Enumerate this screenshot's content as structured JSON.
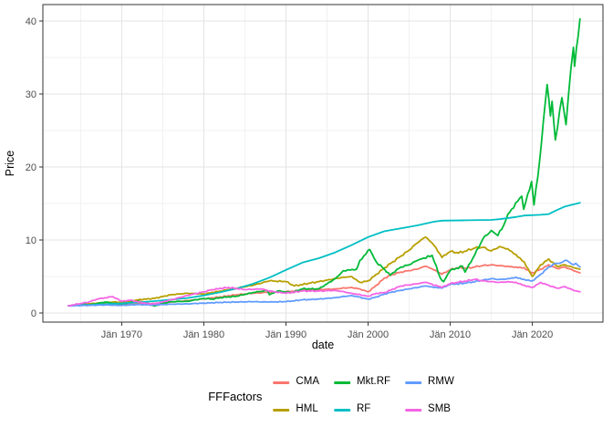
{
  "chart_data": {
    "type": "line",
    "title": "",
    "xlabel": "date",
    "ylabel": "Price",
    "legend_title": "FFFactors",
    "legend_position": "bottom",
    "grid": true,
    "xlim": [
      1960.4,
      2028.6
    ],
    "ylim": [
      -1.25,
      42.25
    ],
    "x_ticks": [
      {
        "label": "Jän 1970",
        "year": 1970
      },
      {
        "label": "Jän 1980",
        "year": 1980
      },
      {
        "label": "Jän 1990",
        "year": 1990
      },
      {
        "label": "Jän 2000",
        "year": 2000
      },
      {
        "label": "Jän 2010",
        "year": 2010
      },
      {
        "label": "Jän 2020",
        "year": 2020
      }
    ],
    "x_minor_ticks": [
      1965,
      1975,
      1985,
      1995,
      2005,
      2015,
      2025
    ],
    "y_ticks": [
      {
        "label": "0",
        "value": 0
      },
      {
        "label": "10",
        "value": 10
      },
      {
        "label": "20",
        "value": 20
      },
      {
        "label": "30",
        "value": 30
      },
      {
        "label": "40",
        "value": 40
      }
    ],
    "y_minor_ticks": [
      5,
      15,
      25,
      35
    ],
    "colors": {
      "panel_border": "#333333",
      "grid_major": "#e3e3e3",
      "grid_minor": "#f1f1f1",
      "tick_label": "#4d4d4d"
    },
    "series": [
      {
        "name": "CMA",
        "color": "#F8766D",
        "points": [
          [
            1963.5,
            1.0
          ],
          [
            1965,
            1.05
          ],
          [
            1966,
            1.1
          ],
          [
            1968,
            1.15
          ],
          [
            1970,
            1.1
          ],
          [
            1972,
            1.25
          ],
          [
            1974,
            1.3
          ],
          [
            1976,
            1.5
          ],
          [
            1978,
            1.7
          ],
          [
            1980,
            1.95
          ],
          [
            1982,
            2.2
          ],
          [
            1984,
            2.5
          ],
          [
            1986,
            2.7
          ],
          [
            1988,
            2.85
          ],
          [
            1990,
            2.9
          ],
          [
            1992,
            3.1
          ],
          [
            1994,
            3.2
          ],
          [
            1996,
            3.3
          ],
          [
            1998,
            3.5
          ],
          [
            1999,
            3.3
          ],
          [
            2000,
            2.9
          ],
          [
            2001,
            3.8
          ],
          [
            2002,
            4.8
          ],
          [
            2003,
            5.3
          ],
          [
            2004,
            5.6
          ],
          [
            2005,
            5.8
          ],
          [
            2006,
            6.0
          ],
          [
            2007,
            6.4
          ],
          [
            2008,
            5.9
          ],
          [
            2009,
            5.3
          ],
          [
            2010,
            5.9
          ],
          [
            2011,
            6.2
          ],
          [
            2012,
            6.1
          ],
          [
            2013,
            6.3
          ],
          [
            2014,
            6.5
          ],
          [
            2015,
            6.6
          ],
          [
            2016,
            6.5
          ],
          [
            2017,
            6.4
          ],
          [
            2018,
            6.3
          ],
          [
            2019,
            6.2
          ],
          [
            2020,
            5.5
          ],
          [
            2021,
            6.0
          ],
          [
            2022,
            6.6
          ],
          [
            2023,
            6.1
          ],
          [
            2024,
            6.3
          ],
          [
            2025,
            5.8
          ],
          [
            2025.8,
            5.5
          ]
        ]
      },
      {
        "name": "HML",
        "color": "#B79F00",
        "points": [
          [
            1963.5,
            1.0
          ],
          [
            1965,
            1.15
          ],
          [
            1967,
            1.35
          ],
          [
            1969,
            1.5
          ],
          [
            1970,
            1.45
          ],
          [
            1972,
            1.8
          ],
          [
            1974,
            2.0
          ],
          [
            1976,
            2.5
          ],
          [
            1978,
            2.7
          ],
          [
            1980,
            2.6
          ],
          [
            1982,
            3.0
          ],
          [
            1984,
            3.4
          ],
          [
            1986,
            3.8
          ],
          [
            1988,
            4.4
          ],
          [
            1990,
            4.3
          ],
          [
            1991,
            3.7
          ],
          [
            1993,
            4.1
          ],
          [
            1995,
            4.5
          ],
          [
            1997,
            4.9
          ],
          [
            1998,
            5.0
          ],
          [
            1999,
            4.2
          ],
          [
            2000,
            4.4
          ],
          [
            2001,
            5.3
          ],
          [
            2002,
            6.2
          ],
          [
            2003,
            7.0
          ],
          [
            2004,
            7.8
          ],
          [
            2005,
            8.6
          ],
          [
            2006,
            9.6
          ],
          [
            2007,
            10.4
          ],
          [
            2008,
            9.3
          ],
          [
            2009,
            7.6
          ],
          [
            2010,
            8.4
          ],
          [
            2011,
            8.2
          ],
          [
            2012,
            8.5
          ],
          [
            2013,
            8.9
          ],
          [
            2014,
            9.0
          ],
          [
            2015,
            8.5
          ],
          [
            2016,
            9.1
          ],
          [
            2017,
            8.8
          ],
          [
            2018,
            8.0
          ],
          [
            2019,
            7.0
          ],
          [
            2020,
            5.0
          ],
          [
            2021,
            6.6
          ],
          [
            2022,
            7.4
          ],
          [
            2023,
            6.4
          ],
          [
            2024,
            6.6
          ],
          [
            2025,
            6.2
          ],
          [
            2025.8,
            6.0
          ]
        ]
      },
      {
        "name": "Mkt.RF",
        "color": "#00BA38",
        "points": [
          [
            1963.5,
            1.0
          ],
          [
            1965,
            1.2
          ],
          [
            1966,
            1.1
          ],
          [
            1968,
            1.5
          ],
          [
            1969,
            1.3
          ],
          [
            1970,
            1.25
          ],
          [
            1972,
            1.6
          ],
          [
            1973,
            1.35
          ],
          [
            1974,
            0.95
          ],
          [
            1975,
            1.3
          ],
          [
            1976,
            1.55
          ],
          [
            1978,
            1.6
          ],
          [
            1980,
            2.0
          ],
          [
            1981,
            1.9
          ],
          [
            1982,
            2.1
          ],
          [
            1984,
            2.3
          ],
          [
            1986,
            2.8
          ],
          [
            1987.7,
            3.1
          ],
          [
            1988,
            2.5
          ],
          [
            1989,
            3.0
          ],
          [
            1990.7,
            2.8
          ],
          [
            1992,
            3.3
          ],
          [
            1994,
            3.3
          ],
          [
            1995,
            4.0
          ],
          [
            1996,
            4.7
          ],
          [
            1997,
            5.8
          ],
          [
            1998.6,
            6.0
          ],
          [
            1999,
            7.2
          ],
          [
            2000.2,
            8.7
          ],
          [
            2001,
            7.0
          ],
          [
            2002,
            6.0
          ],
          [
            2002.7,
            5.2
          ],
          [
            2003,
            5.5
          ],
          [
            2004,
            6.3
          ],
          [
            2005,
            6.6
          ],
          [
            2006,
            7.2
          ],
          [
            2007.8,
            7.9
          ],
          [
            2008.8,
            4.8
          ],
          [
            2009.2,
            4.3
          ],
          [
            2010,
            5.8
          ],
          [
            2011.5,
            6.4
          ],
          [
            2011.8,
            5.6
          ],
          [
            2013,
            8.0
          ],
          [
            2014,
            10.2
          ],
          [
            2015,
            11.3
          ],
          [
            2015.8,
            10.6
          ],
          [
            2016.5,
            12.0
          ],
          [
            2017,
            13.5
          ],
          [
            2018.7,
            16.0
          ],
          [
            2018.95,
            14.2
          ],
          [
            2019.9,
            18.0
          ],
          [
            2020.2,
            14.8
          ],
          [
            2020.9,
            21.0
          ],
          [
            2021.8,
            31.3
          ],
          [
            2022.2,
            27.0
          ],
          [
            2022.4,
            29.0
          ],
          [
            2022.8,
            23.7
          ],
          [
            2023.6,
            29.5
          ],
          [
            2024.1,
            25.8
          ],
          [
            2024.7,
            33.5
          ],
          [
            2025.0,
            36.4
          ],
          [
            2025.15,
            33.8
          ],
          [
            2025.8,
            40.3
          ]
        ]
      },
      {
        "name": "RF",
        "color": "#00BFC4",
        "points": [
          [
            1963.5,
            1.0
          ],
          [
            1966,
            1.1
          ],
          [
            1968,
            1.2
          ],
          [
            1970,
            1.32
          ],
          [
            1972,
            1.45
          ],
          [
            1974,
            1.62
          ],
          [
            1976,
            1.82
          ],
          [
            1978,
            2.05
          ],
          [
            1980,
            2.4
          ],
          [
            1982,
            2.85
          ],
          [
            1984,
            3.35
          ],
          [
            1986,
            4.0
          ],
          [
            1988,
            4.85
          ],
          [
            1990,
            5.9
          ],
          [
            1992,
            6.9
          ],
          [
            1994,
            7.5
          ],
          [
            1996,
            8.3
          ],
          [
            1998,
            9.3
          ],
          [
            2000,
            10.4
          ],
          [
            2002,
            11.2
          ],
          [
            2004,
            11.6
          ],
          [
            2006,
            12.0
          ],
          [
            2008,
            12.5
          ],
          [
            2009,
            12.65
          ],
          [
            2012,
            12.7
          ],
          [
            2015,
            12.75
          ],
          [
            2016,
            12.85
          ],
          [
            2018,
            13.15
          ],
          [
            2019,
            13.35
          ],
          [
            2021,
            13.45
          ],
          [
            2022,
            13.55
          ],
          [
            2023,
            14.1
          ],
          [
            2024,
            14.6
          ],
          [
            2025.8,
            15.1
          ]
        ]
      },
      {
        "name": "RMW",
        "color": "#619CFF",
        "points": [
          [
            1963.5,
            1.0
          ],
          [
            1966,
            1.05
          ],
          [
            1968,
            1.1
          ],
          [
            1970,
            1.05
          ],
          [
            1972,
            1.15
          ],
          [
            1974,
            1.1
          ],
          [
            1976,
            1.2
          ],
          [
            1978,
            1.25
          ],
          [
            1980,
            1.35
          ],
          [
            1982,
            1.45
          ],
          [
            1984,
            1.5
          ],
          [
            1986,
            1.55
          ],
          [
            1988,
            1.5
          ],
          [
            1990,
            1.55
          ],
          [
            1992,
            1.8
          ],
          [
            1994,
            1.9
          ],
          [
            1996,
            2.1
          ],
          [
            1998,
            2.4
          ],
          [
            2000,
            1.9
          ],
          [
            2001,
            2.2
          ],
          [
            2002,
            2.6
          ],
          [
            2003,
            2.9
          ],
          [
            2005,
            3.3
          ],
          [
            2007,
            3.7
          ],
          [
            2008,
            3.5
          ],
          [
            2009,
            3.4
          ],
          [
            2010,
            3.9
          ],
          [
            2012,
            4.1
          ],
          [
            2014,
            4.5
          ],
          [
            2015,
            4.7
          ],
          [
            2016,
            4.6
          ],
          [
            2017,
            4.7
          ],
          [
            2018,
            4.9
          ],
          [
            2019,
            4.6
          ],
          [
            2020,
            4.4
          ],
          [
            2021,
            5.3
          ],
          [
            2022,
            6.3
          ],
          [
            2022.8,
            6.8
          ],
          [
            2023.5,
            6.9
          ],
          [
            2024.2,
            7.2
          ],
          [
            2024.8,
            6.7
          ],
          [
            2025.3,
            6.8
          ],
          [
            2025.8,
            6.3
          ]
        ]
      },
      {
        "name": "SMB",
        "color": "#F564E3",
        "points": [
          [
            1963.5,
            1.0
          ],
          [
            1965,
            1.3
          ],
          [
            1966,
            1.5
          ],
          [
            1967,
            1.9
          ],
          [
            1968.9,
            2.25
          ],
          [
            1970,
            1.6
          ],
          [
            1971,
            1.75
          ],
          [
            1973,
            1.3
          ],
          [
            1974,
            1.25
          ],
          [
            1976,
            1.8
          ],
          [
            1978,
            2.4
          ],
          [
            1980,
            2.9
          ],
          [
            1981,
            3.2
          ],
          [
            1983,
            3.5
          ],
          [
            1985,
            3.2
          ],
          [
            1987,
            3.3
          ],
          [
            1988,
            3.0
          ],
          [
            1990,
            2.7
          ],
          [
            1992,
            3.0
          ],
          [
            1994,
            3.0
          ],
          [
            1996,
            3.1
          ],
          [
            1998,
            2.7
          ],
          [
            2000,
            2.3
          ],
          [
            2001,
            2.7
          ],
          [
            2002,
            2.8
          ],
          [
            2004,
            3.7
          ],
          [
            2006,
            4.0
          ],
          [
            2007,
            4.2
          ],
          [
            2009,
            3.5
          ],
          [
            2010,
            4.0
          ],
          [
            2011,
            4.2
          ],
          [
            2013,
            4.6
          ],
          [
            2014,
            4.4
          ],
          [
            2015,
            4.3
          ],
          [
            2016,
            4.2
          ],
          [
            2017,
            4.3
          ],
          [
            2018,
            4.2
          ],
          [
            2019,
            3.8
          ],
          [
            2020,
            3.5
          ],
          [
            2021,
            4.2
          ],
          [
            2022,
            3.8
          ],
          [
            2023,
            3.4
          ],
          [
            2024,
            3.6
          ],
          [
            2025,
            3.1
          ],
          [
            2025.8,
            2.9
          ]
        ]
      }
    ]
  },
  "legend": {
    "title": "FFFactors",
    "items": [
      {
        "label": "CMA",
        "color": "#F8766D"
      },
      {
        "label": "HML",
        "color": "#B79F00"
      },
      {
        "label": "Mkt.RF",
        "color": "#00BA38"
      },
      {
        "label": "RF",
        "color": "#00BFC4"
      },
      {
        "label": "RMW",
        "color": "#619CFF"
      },
      {
        "label": "SMB",
        "color": "#F564E3"
      }
    ]
  }
}
